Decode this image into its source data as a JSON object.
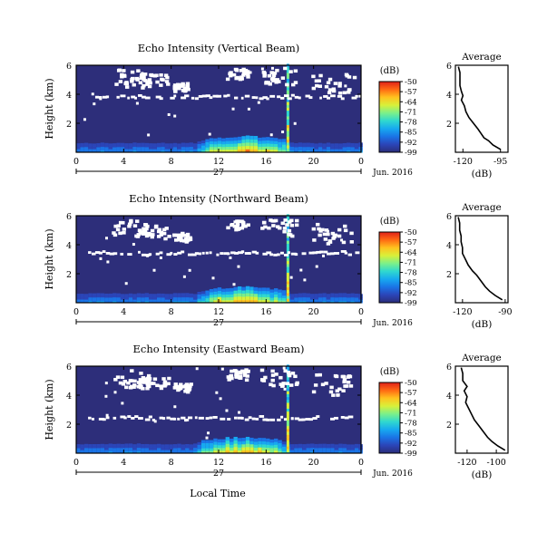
{
  "colors": {
    "background_field": "#2d2e7a",
    "missing": "#ffffff",
    "axis": "#000000",
    "colormap": [
      "#2b2d79",
      "#2b45b8",
      "#1a74e6",
      "#17a9f0",
      "#2fd8cf",
      "#7bf08a",
      "#d8f03a",
      "#ffc21f",
      "#ff6a13",
      "#e0201a"
    ]
  },
  "figure": {
    "xlabel": "Local Time",
    "day_label": "27",
    "date_label": "Jun. 2016",
    "ylabel": "Height (km)",
    "unit_label": "(dB)",
    "avg_title": "Average",
    "avg_xlabel": "(dB)"
  },
  "chart_data": [
    {
      "type": "heatmap",
      "title": "Echo Intensity (Vertical Beam)",
      "xlabel": "Local Time",
      "ylabel": "Height (km)",
      "xlim": [
        0,
        24
      ],
      "ylim": [
        0,
        6
      ],
      "xticks": [
        "0",
        "4",
        "8",
        "12",
        "16",
        "20",
        "0"
      ],
      "yticks": [
        "2",
        "4",
        "6"
      ],
      "colorbar": {
        "label": "(dB)",
        "ticks": [
          "-50",
          "-57",
          "-64",
          "-71",
          "-78",
          "-85",
          "-92",
          "-99"
        ],
        "range": [
          -99,
          -50
        ]
      },
      "features": {
        "missing_band_height_km": 3.9,
        "rain_spike_hour": 17.8,
        "strong_echo_hours": [
          10,
          18
        ],
        "surface_echo_height_km": 0.4
      },
      "profile": {
        "title": "Average",
        "xlabel": "(dB)",
        "xlim": [
          -125,
          -90
        ],
        "xticks": [
          "-120",
          "-95"
        ],
        "ylim": [
          0,
          6
        ],
        "yticks": [
          "2",
          "4",
          "6"
        ],
        "height_km": [
          0.2,
          0.5,
          0.8,
          1.0,
          1.3,
          1.6,
          2.0,
          2.4,
          2.8,
          3.2,
          3.6,
          3.9,
          4.2,
          4.6,
          5.0,
          5.5,
          5.9
        ],
        "dB": [
          -95,
          -100,
          -103,
          -106,
          -108,
          -110,
          -113,
          -116,
          -118,
          -119,
          -121,
          -120,
          -121,
          -122,
          -122,
          -122,
          -123
        ]
      }
    },
    {
      "type": "heatmap",
      "title": "Echo Intensity (Northward Beam)",
      "xlabel": "Local Time",
      "ylabel": "Height (km)",
      "xlim": [
        0,
        24
      ],
      "ylim": [
        0,
        6
      ],
      "xticks": [
        "0",
        "4",
        "8",
        "12",
        "16",
        "20",
        "0"
      ],
      "yticks": [
        "2",
        "4",
        "6"
      ],
      "colorbar": {
        "label": "(dB)",
        "ticks": [
          "-50",
          "-57",
          "-64",
          "-71",
          "-78",
          "-85",
          "-92",
          "-99"
        ],
        "range": [
          -99,
          -50
        ]
      },
      "features": {
        "missing_band_height_km": 3.5,
        "rain_spike_hour": 17.8,
        "strong_echo_hours": [
          10,
          18
        ],
        "surface_echo_height_km": 0.4
      },
      "profile": {
        "title": "Average",
        "xlabel": "(dB)",
        "xlim": [
          -125,
          -88
        ],
        "xticks": [
          "-120",
          "-90"
        ],
        "ylim": [
          0,
          6
        ],
        "yticks": [
          "2",
          "4",
          "6"
        ],
        "height_km": [
          0.2,
          0.5,
          0.8,
          1.1,
          1.5,
          1.9,
          2.2,
          2.6,
          3.0,
          3.4,
          3.8,
          4.2,
          4.6,
          5.0,
          5.5,
          5.9
        ],
        "dB": [
          -92,
          -97,
          -101,
          -104,
          -107,
          -110,
          -113,
          -116,
          -118,
          -120,
          -120,
          -121,
          -121,
          -122,
          -122,
          -123
        ]
      }
    },
    {
      "type": "heatmap",
      "title": "Echo Intensity (Eastward Beam)",
      "xlabel": "Local Time",
      "ylabel": "Height (km)",
      "xlim": [
        0,
        24
      ],
      "ylim": [
        0,
        6
      ],
      "xticks": [
        "0",
        "4",
        "8",
        "12",
        "16",
        "20",
        "0"
      ],
      "yticks": [
        "2",
        "4",
        "6"
      ],
      "colorbar": {
        "label": "(dB)",
        "ticks": [
          "-50",
          "-57",
          "-64",
          "-71",
          "-78",
          "-85",
          "-92",
          "-99"
        ],
        "range": [
          -99,
          -50
        ]
      },
      "features": {
        "missing_band_height_km": 2.5,
        "rain_spike_hour": 17.8,
        "strong_echo_hours": [
          10,
          18
        ],
        "surface_echo_height_km": 0.4
      },
      "profile": {
        "title": "Average",
        "xlabel": "(dB)",
        "xlim": [
          -128,
          -92
        ],
        "xticks": [
          "-120",
          "-100"
        ],
        "ylim": [
          0,
          6
        ],
        "yticks": [
          "2",
          "4",
          "6"
        ],
        "height_km": [
          0.2,
          0.5,
          0.8,
          1.1,
          1.5,
          1.9,
          2.3,
          2.7,
          3.1,
          3.5,
          3.9,
          4.3,
          4.6,
          5.0,
          5.5,
          5.9
        ],
        "dB": [
          -94,
          -99,
          -103,
          -106,
          -109,
          -112,
          -115,
          -117,
          -119,
          -121,
          -120,
          -122,
          -120,
          -123,
          -123,
          -124
        ]
      }
    }
  ]
}
